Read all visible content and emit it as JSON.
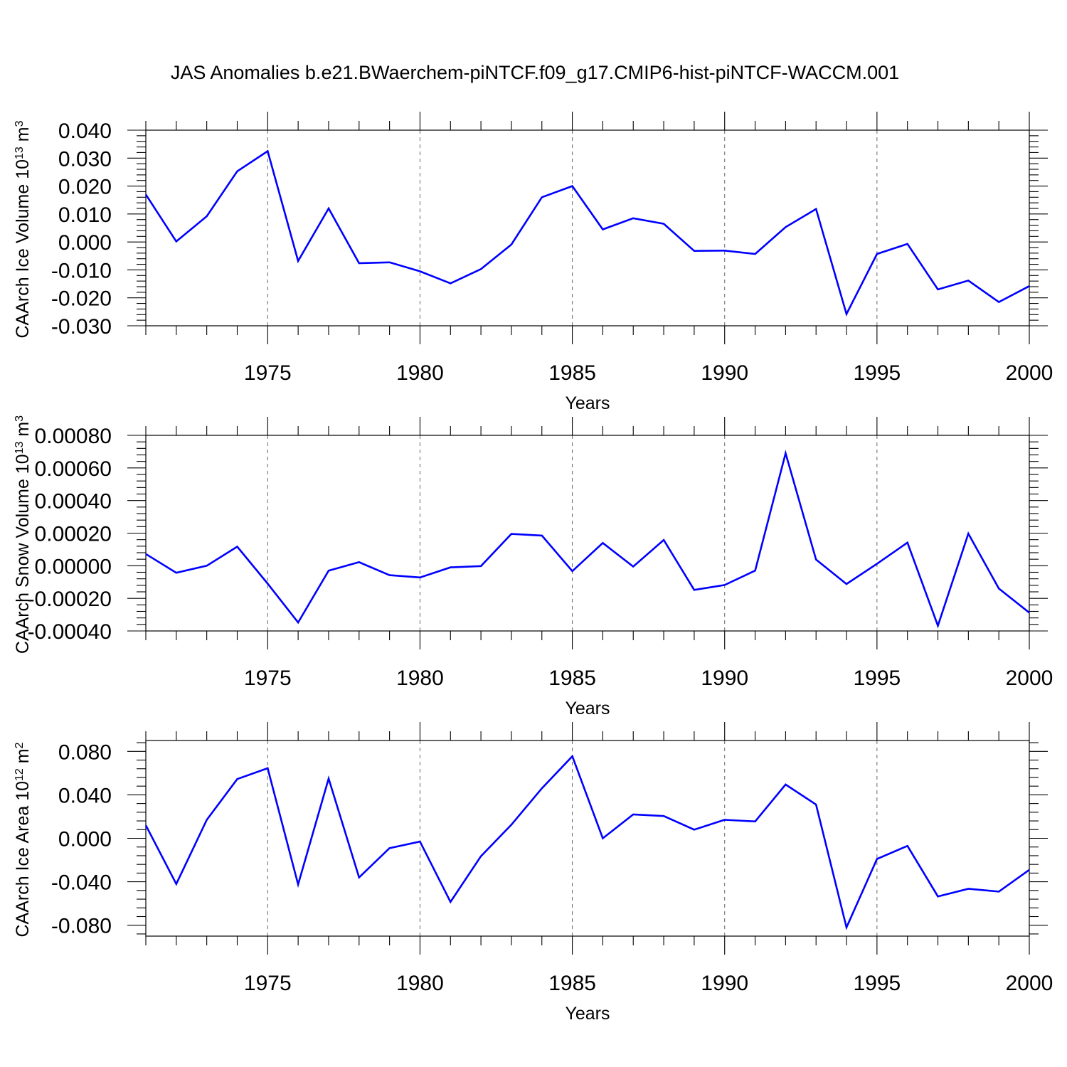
{
  "title": "JAS Anomalies b.e21.BWaerchem-piNTCF.f09_g17.CMIP6-hist-piNTCF-WACCM.001",
  "colors": {
    "series": "#0000ff",
    "axis": "#000000",
    "grid": "#777777"
  },
  "chart_data": [
    {
      "type": "line",
      "title": "JAS Anomalies b.e21.BWaerchem-piNTCF.f09_g17.CMIP6-hist-piNTCF-WACCM.001",
      "xlabel": "Years",
      "ylabel": "CAArch Ice Volume 10",
      "ylabel_exp": "13",
      "ylabel_unit": " m",
      "ylabel_unit_exp": "3",
      "xlim": [
        1971,
        2000
      ],
      "ylim": [
        -0.03,
        0.04
      ],
      "grid": "vertical dashed at major x ticks",
      "x_ticks": [
        1975,
        1980,
        1985,
        1990,
        1995,
        2000
      ],
      "x_tick_labels": [
        "1975",
        "1980",
        "1985",
        "1990",
        "1995",
        "2000"
      ],
      "y_ticks": [
        -0.03,
        -0.02,
        -0.01,
        0.0,
        0.01,
        0.02,
        0.03,
        0.04
      ],
      "y_tick_labels": [
        "-0.030",
        "-0.020",
        "-0.010",
        "0.000",
        "0.010",
        "0.020",
        "0.030",
        "0.040"
      ],
      "x": [
        1971,
        1972,
        1973,
        1974,
        1975,
        1976,
        1977,
        1978,
        1979,
        1980,
        1981,
        1982,
        1983,
        1984,
        1985,
        1986,
        1987,
        1988,
        1989,
        1990,
        1991,
        1992,
        1993,
        1994,
        1995,
        1996,
        1997,
        1998,
        1999,
        2000
      ],
      "series": [
        {
          "name": "CAArch Ice Volume",
          "values": [
            0.017,
            0.0002,
            0.0092,
            0.0253,
            0.0325,
            -0.0068,
            0.012,
            -0.0076,
            -0.0073,
            -0.0105,
            -0.0148,
            -0.0097,
            -0.0009,
            0.016,
            0.02,
            0.0045,
            0.0085,
            0.0065,
            -0.0032,
            -0.0031,
            -0.0043,
            0.0053,
            0.0118,
            -0.0258,
            -0.0043,
            -0.0007,
            -0.017,
            -0.0138,
            -0.0215,
            -0.0158
          ]
        }
      ]
    },
    {
      "type": "line",
      "title": "",
      "xlabel": "Years",
      "ylabel": "CAArch Snow Volume 10",
      "ylabel_exp": "13",
      "ylabel_unit": " m",
      "ylabel_unit_exp": "3",
      "xlim": [
        1971,
        2000
      ],
      "ylim": [
        -0.0004,
        0.0008
      ],
      "grid": "vertical dashed at major x ticks",
      "x_ticks": [
        1975,
        1980,
        1985,
        1990,
        1995,
        2000
      ],
      "x_tick_labels": [
        "1975",
        "1980",
        "1985",
        "1990",
        "1995",
        "2000"
      ],
      "y_ticks": [
        -0.0004,
        -0.0002,
        0.0,
        0.0002,
        0.0004,
        0.0006,
        0.0008
      ],
      "y_tick_labels": [
        "-0.00040",
        "-0.00020",
        "0.00000",
        "0.00020",
        "0.00040",
        "0.00060",
        "0.00080"
      ],
      "x": [
        1971,
        1972,
        1973,
        1974,
        1975,
        1976,
        1977,
        1978,
        1979,
        1980,
        1981,
        1982,
        1983,
        1984,
        1985,
        1986,
        1987,
        1988,
        1989,
        1990,
        1991,
        1992,
        1993,
        1994,
        1995,
        1996,
        1997,
        1998,
        1999,
        2000
      ],
      "series": [
        {
          "name": "CAArch Snow Volume",
          "values": [
            7.2e-05,
            -4.3e-05,
            0.0,
            0.000117,
            -0.00011,
            -0.000348,
            -3e-05,
            2.2e-05,
            -5.8e-05,
            -7.2e-05,
            -1e-05,
            -2e-06,
            0.000195,
            0.000185,
            -3.3e-05,
            0.00014,
            -5e-06,
            0.000158,
            -0.000148,
            -0.000118,
            -3e-05,
            0.00069,
            3.8e-05,
            -0.000112,
            1.2e-05,
            0.000142,
            -0.000368,
            0.000197,
            -0.00014,
            -0.000288
          ]
        }
      ]
    },
    {
      "type": "line",
      "title": "",
      "xlabel": "Years",
      "ylabel": "CAArch Ice Area 10",
      "ylabel_exp": "12",
      "ylabel_unit": " m",
      "ylabel_unit_exp": "2",
      "xlim": [
        1971,
        2000
      ],
      "ylim": [
        -0.09,
        0.09
      ],
      "grid": "vertical dashed at major x ticks",
      "x_ticks": [
        1975,
        1980,
        1985,
        1990,
        1995,
        2000
      ],
      "x_tick_labels": [
        "1975",
        "1980",
        "1985",
        "1990",
        "1995",
        "2000"
      ],
      "y_ticks": [
        -0.08,
        -0.04,
        0.0,
        0.04,
        0.08
      ],
      "y_tick_labels": [
        "-0.080",
        "-0.040",
        "0.000",
        "0.040",
        "0.080"
      ],
      "x": [
        1971,
        1972,
        1973,
        1974,
        1975,
        1976,
        1977,
        1978,
        1979,
        1980,
        1981,
        1982,
        1983,
        1984,
        1985,
        1986,
        1987,
        1988,
        1989,
        1990,
        1991,
        1992,
        1993,
        1994,
        1995,
        1996,
        1997,
        1998,
        1999,
        2000
      ],
      "series": [
        {
          "name": "CAArch Ice Area",
          "values": [
            0.012,
            -0.042,
            0.017,
            0.0545,
            0.0645,
            -0.0425,
            0.055,
            -0.036,
            -0.009,
            -0.003,
            -0.0585,
            -0.0165,
            0.0125,
            0.046,
            0.0755,
            0.0,
            0.022,
            0.0205,
            0.008,
            0.017,
            0.0155,
            0.0495,
            0.031,
            -0.082,
            -0.019,
            -0.007,
            -0.0535,
            -0.0465,
            -0.049,
            -0.029
          ]
        }
      ]
    }
  ]
}
